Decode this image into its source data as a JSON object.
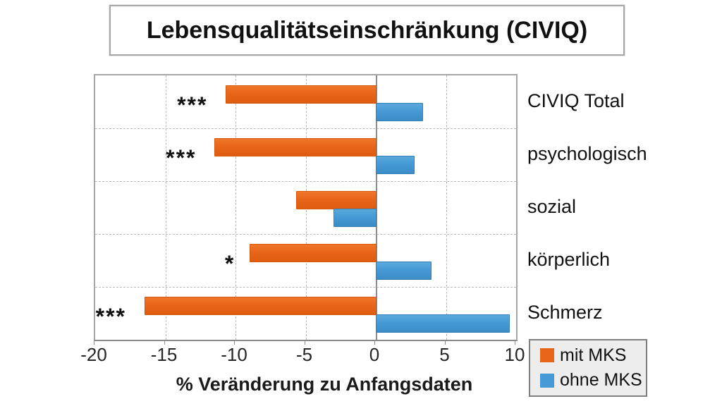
{
  "title": "Lebensqualitätseinschränkung (CIVIQ)",
  "chart_data": {
    "type": "bar",
    "orientation": "horizontal",
    "title": "Lebensqualitätseinschränkung (CIVIQ)",
    "categories": [
      "CIVIQ Total",
      "psychologisch",
      "sozial",
      "körperlich",
      "Schmerz"
    ],
    "series": [
      {
        "name": "mit MKS",
        "color": "#e8661a",
        "values": [
          -10.7,
          -11.5,
          -5.7,
          -9.0,
          -16.5
        ]
      },
      {
        "name": "ohne MKS",
        "color": "#459ad5",
        "values": [
          3.3,
          2.7,
          -3.0,
          3.9,
          9.5
        ]
      }
    ],
    "significance": [
      "***",
      "***",
      "",
      "*",
      "***"
    ],
    "xlabel": "% Veränderung zu Anfangsdaten",
    "xlim": [
      -20,
      10
    ],
    "xticks": [
      -20,
      -15,
      -10,
      -5,
      0,
      5,
      10
    ],
    "grid": true,
    "legend_position": "bottom-right"
  },
  "legend": {
    "items": [
      {
        "label": "mit MKS",
        "color": "#e8661a"
      },
      {
        "label": "ohne MKS",
        "color": "#459ad5"
      }
    ]
  }
}
